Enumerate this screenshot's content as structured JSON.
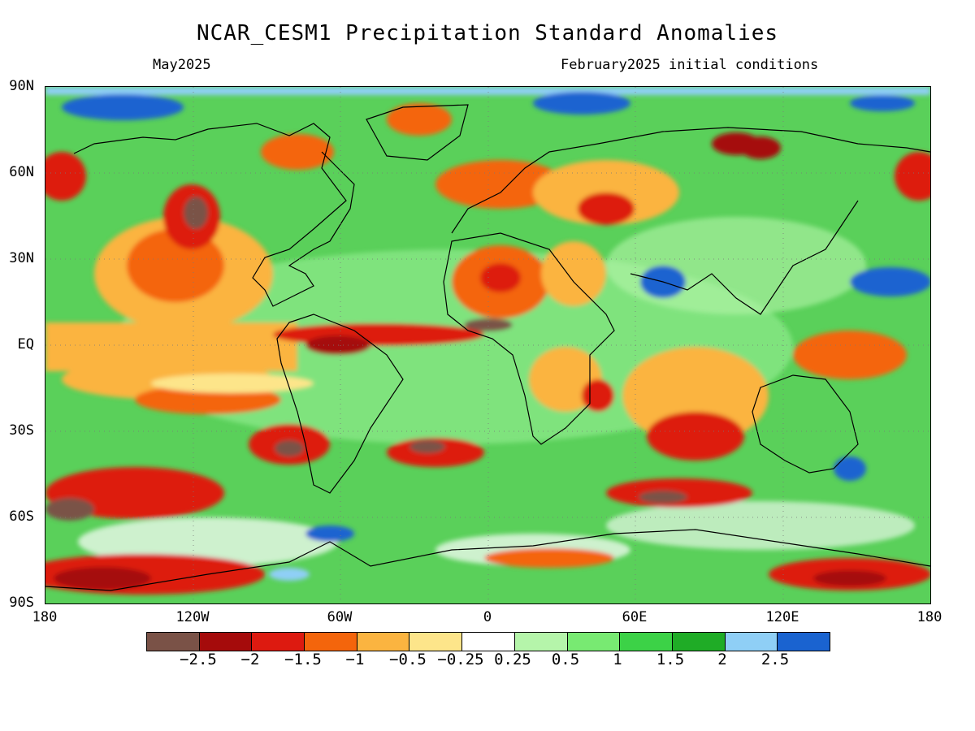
{
  "title": "NCAR_CESM1 Precipitation Standard Anomalies",
  "subtitle_left": "May2025",
  "subtitle_right": "February2025 initial conditions",
  "map": {
    "projection": "equirectangular",
    "lat_labels": [
      "90N",
      "60N",
      "30N",
      "EQ",
      "30S",
      "60S",
      "90S"
    ],
    "lon_labels": [
      "180",
      "120W",
      "60W",
      "0",
      "60E",
      "120E",
      "180"
    ],
    "gridlines": "dotted"
  },
  "colorbar": {
    "colors": [
      "#7a5247",
      "#a50b0b",
      "#dd1a10",
      "#f4650c",
      "#fbb440",
      "#fde58a",
      "#ffffff",
      "#b5f5aa",
      "#78ea72",
      "#3cd247",
      "#1fac26",
      "#8fcff6",
      "#1a63d0"
    ],
    "labels": [
      "−2.5",
      "−2",
      "−1.5",
      "−1",
      "−0.5",
      "−0.25",
      "0.25",
      "0.5",
      "1",
      "1.5",
      "2",
      "2.5"
    ]
  }
}
